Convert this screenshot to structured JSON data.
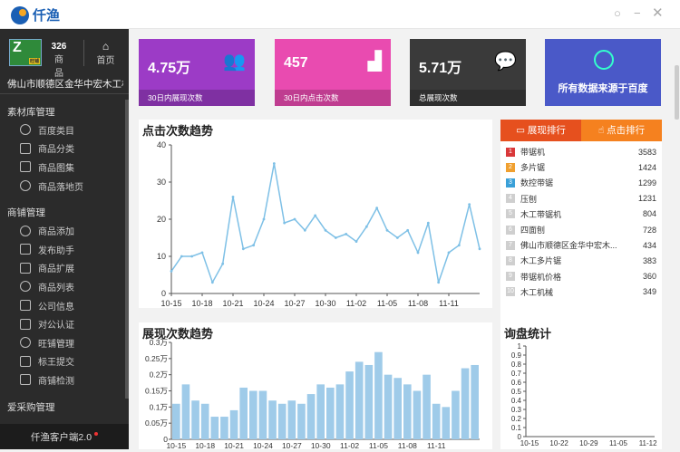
{
  "app": {
    "name": "仟渔",
    "client_label": "仟渔客户端2.0"
  },
  "window": {
    "min_icon": "minimize-icon",
    "max_icon": "maximize-icon",
    "close_icon": "close-icon"
  },
  "shop": {
    "logo_text": "Z",
    "logo_badge": "旺铺",
    "product_count": "326",
    "product_label": "商品",
    "home_label": "首页",
    "name": "佛山市顺德区金华中宏木工机..."
  },
  "menu": [
    {
      "group": "素材库管理",
      "items": [
        "百度类目",
        "商品分类",
        "商品图集",
        "商品落地页"
      ]
    },
    {
      "group": "商铺管理",
      "items": [
        "商品添加",
        "发布助手",
        "商品扩展",
        "商品列表",
        "公司信息",
        "对公认证",
        "旺铺管理",
        "标王提交",
        "商铺检测"
      ]
    },
    {
      "group": "爱采购管理",
      "items": []
    }
  ],
  "stats": [
    {
      "value": "4.75万",
      "label": "30日内展现次数",
      "color": "#9c3bc6",
      "icon": "users-icon",
      "icon_glyph": "👥"
    },
    {
      "value": "457",
      "label": "30日内点击次数",
      "color": "#e94bb0",
      "icon": "signal-icon",
      "icon_glyph": "▟"
    },
    {
      "value": "5.71万",
      "label": "总展现次数",
      "color": "#3a3a3a",
      "icon": "chat-icon",
      "icon_glyph": "💬"
    }
  ],
  "baidu_card": {
    "text": "所有数据来源于百度"
  },
  "click_chart": {
    "title": "点击次数趋势"
  },
  "show_chart": {
    "title": "展现次数趋势"
  },
  "inquiry_chart": {
    "title": "询盘统计"
  },
  "chart_data": [
    {
      "type": "line",
      "title": "点击次数趋势",
      "ylim": [
        0,
        40
      ],
      "yticks": [
        0,
        10,
        20,
        30,
        40
      ],
      "xticks": [
        "10-15",
        "10-18",
        "10-21",
        "10-24",
        "10-27",
        "10-30",
        "11-02",
        "11-05",
        "11-08",
        "11-11"
      ],
      "values": [
        6,
        10,
        10,
        11,
        3,
        8,
        26,
        12,
        13,
        20,
        35,
        19,
        20,
        17,
        21,
        17,
        15,
        16,
        14,
        18,
        23,
        17,
        15,
        17,
        11,
        19,
        3,
        11,
        13,
        24,
        12
      ],
      "color": "#7ec0e6"
    },
    {
      "type": "bar",
      "title": "展现次数趋势",
      "ylim": [
        0,
        0.3
      ],
      "yticks": [
        "0",
        "0.05万",
        "0.1万",
        "0.15万",
        "0.2万",
        "0.25万",
        "0.3万"
      ],
      "xticks": [
        "10-15",
        "10-18",
        "10-21",
        "10-24",
        "10-27",
        "10-30",
        "11-02",
        "11-05",
        "11-08",
        "11-11"
      ],
      "values": [
        0.11,
        0.17,
        0.12,
        0.11,
        0.07,
        0.07,
        0.09,
        0.16,
        0.15,
        0.15,
        0.12,
        0.11,
        0.12,
        0.11,
        0.14,
        0.17,
        0.16,
        0.17,
        0.21,
        0.24,
        0.23,
        0.27,
        0.2,
        0.19,
        0.17,
        0.15,
        0.2,
        0.11,
        0.1,
        0.15,
        0.22,
        0.23
      ],
      "color": "#9fcbe9"
    },
    {
      "type": "line",
      "title": "询盘统计",
      "ylim": [
        0,
        1
      ],
      "yticks": [
        0,
        0.1,
        0.2,
        0.3,
        0.4,
        0.5,
        0.6,
        0.7,
        0.8,
        0.9,
        1
      ],
      "xticks": [
        "10-15",
        "10-22",
        "10-29",
        "11-05",
        "11-12"
      ],
      "values": []
    }
  ],
  "rank": {
    "tab_show": "展现排行",
    "tab_click": "点击排行",
    "items": [
      {
        "n": "1",
        "name": "带锯机",
        "value": "3583"
      },
      {
        "n": "2",
        "name": "多片锯",
        "value": "1424"
      },
      {
        "n": "3",
        "name": "数控带锯",
        "value": "1299"
      },
      {
        "n": "4",
        "name": "压刨",
        "value": "1231"
      },
      {
        "n": "5",
        "name": "木工带锯机",
        "value": "804"
      },
      {
        "n": "6",
        "name": "四面刨",
        "value": "728"
      },
      {
        "n": "7",
        "name": "佛山市顺德区金华中宏木...",
        "value": "434"
      },
      {
        "n": "8",
        "name": "木工多片锯",
        "value": "383"
      },
      {
        "n": "9",
        "name": "带锯机价格",
        "value": "360"
      },
      {
        "n": "10",
        "name": "木工机械",
        "value": "349"
      }
    ]
  }
}
